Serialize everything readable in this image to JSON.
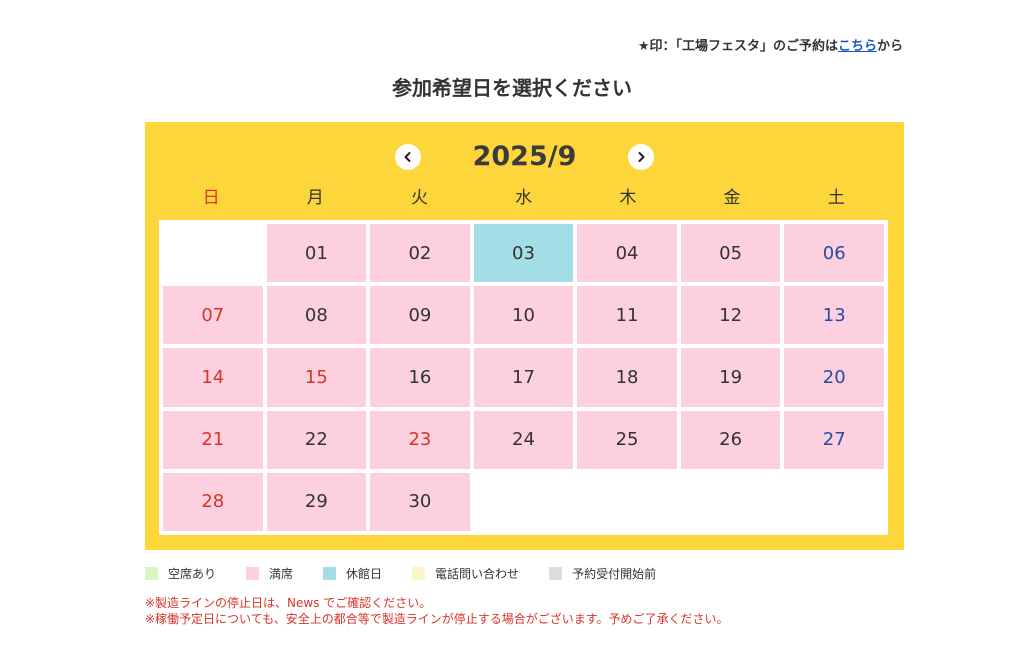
{
  "top_note": {
    "prefix": "★印：「工場フェスタ」のご予約は",
    "link": "こちら",
    "suffix": "から"
  },
  "title": "参加希望日を選択ください",
  "calendar": {
    "month": "2025/9",
    "prev_icon": "chevron-left-icon",
    "next_icon": "chevron-right-icon",
    "weekdays": [
      "日",
      "月",
      "火",
      "水",
      "木",
      "金",
      "土"
    ],
    "days": [
      {
        "label": "",
        "status": "blank"
      },
      {
        "label": "01",
        "status": "full",
        "color": "normal"
      },
      {
        "label": "02",
        "status": "full",
        "color": "normal"
      },
      {
        "label": "03",
        "status": "closed",
        "color": "normal"
      },
      {
        "label": "04",
        "status": "full",
        "color": "normal"
      },
      {
        "label": "05",
        "status": "full",
        "color": "normal"
      },
      {
        "label": "06",
        "status": "full",
        "color": "blue"
      },
      {
        "label": "07",
        "status": "full",
        "color": "red"
      },
      {
        "label": "08",
        "status": "full",
        "color": "normal"
      },
      {
        "label": "09",
        "status": "full",
        "color": "normal"
      },
      {
        "label": "10",
        "status": "full",
        "color": "normal"
      },
      {
        "label": "11",
        "status": "full",
        "color": "normal"
      },
      {
        "label": "12",
        "status": "full",
        "color": "normal"
      },
      {
        "label": "13",
        "status": "full",
        "color": "blue"
      },
      {
        "label": "14",
        "status": "full",
        "color": "red"
      },
      {
        "label": "15",
        "status": "full",
        "color": "red"
      },
      {
        "label": "16",
        "status": "full",
        "color": "normal"
      },
      {
        "label": "17",
        "status": "full",
        "color": "normal"
      },
      {
        "label": "18",
        "status": "full",
        "color": "normal"
      },
      {
        "label": "19",
        "status": "full",
        "color": "normal"
      },
      {
        "label": "20",
        "status": "full",
        "color": "blue"
      },
      {
        "label": "21",
        "status": "full",
        "color": "red"
      },
      {
        "label": "22",
        "status": "full",
        "color": "normal"
      },
      {
        "label": "23",
        "status": "full",
        "color": "red"
      },
      {
        "label": "24",
        "status": "full",
        "color": "normal"
      },
      {
        "label": "25",
        "status": "full",
        "color": "normal"
      },
      {
        "label": "26",
        "status": "full",
        "color": "normal"
      },
      {
        "label": "27",
        "status": "full",
        "color": "blue"
      },
      {
        "label": "28",
        "status": "full",
        "color": "red"
      },
      {
        "label": "29",
        "status": "full",
        "color": "normal"
      },
      {
        "label": "30",
        "status": "full",
        "color": "normal"
      },
      {
        "label": "",
        "status": "blank"
      },
      {
        "label": "",
        "status": "blank"
      },
      {
        "label": "",
        "status": "blank"
      },
      {
        "label": "",
        "status": "blank"
      }
    ]
  },
  "legend": [
    {
      "label": "空席あり",
      "color": "#d9f5c4"
    },
    {
      "label": "満席",
      "color": "#fcd0df"
    },
    {
      "label": "休館日",
      "color": "#a3dde5"
    },
    {
      "label": "電話問い合わせ",
      "color": "#fbf6c9"
    },
    {
      "label": "予約受付開始前",
      "color": "#dddddd"
    }
  ],
  "notes": [
    "※製造ラインの停止日は、News でご確認ください。",
    "※稼働予定日についても、安全上の都合等で製造ラインが停止する場合がございます。予めご了承ください。"
  ],
  "colors": {
    "accent": "#fdd63c",
    "full": "#fcd0df",
    "closed": "#a3dde5",
    "holiday_red": "#d9342b",
    "saturday_blue": "#274b9f"
  }
}
